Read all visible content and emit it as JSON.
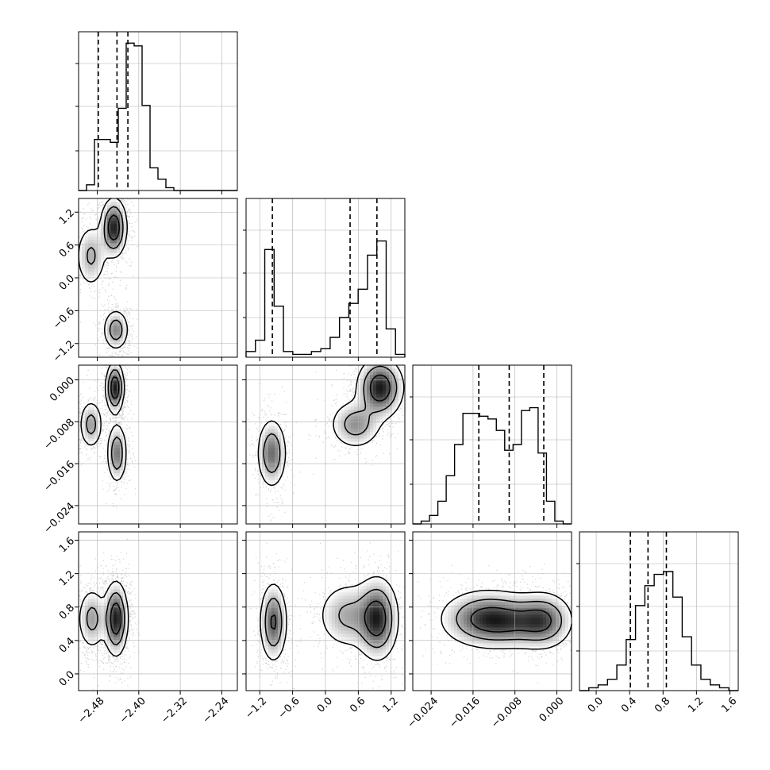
{
  "chart_data": {
    "type": "corner",
    "parameters": 4,
    "axes_ticks": [
      [
        "−2.48",
        "−2.40",
        "−2.32",
        "−2.24"
      ],
      [
        "−1.2",
        "−0.6",
        "0.0",
        "0.6",
        "1.2"
      ],
      [
        "−0.024",
        "−0.016",
        "−0.008",
        "0.000"
      ],
      [
        "0.0",
        "0.4",
        "0.8",
        "1.2",
        "1.6"
      ]
    ],
    "axes_tick_values": [
      [
        -2.48,
        -2.4,
        -2.32,
        -2.24
      ],
      [
        -1.2,
        -0.6,
        0.0,
        0.6,
        1.2
      ],
      [
        -0.024,
        -0.016,
        -0.008,
        0.0
      ],
      [
        0.0,
        0.4,
        0.8,
        1.2,
        1.6
      ]
    ],
    "ranges": [
      [
        -2.516,
        -2.21
      ],
      [
        -1.45,
        1.45
      ],
      [
        -0.0275,
        0.0028
      ],
      [
        -0.2,
        1.7
      ]
    ],
    "quantiles": [
      [
        -2.478,
        -2.442,
        -2.421
      ],
      [
        -0.97,
        0.45,
        0.94
      ],
      [
        -0.0149,
        -0.0091,
        -0.0025
      ],
      [
        0.41,
        0.62,
        0.84
      ]
    ],
    "histograms": [
      [
        0,
        2,
        18,
        18,
        17,
        29,
        52,
        51,
        30,
        8,
        4,
        1,
        0,
        0,
        0,
        0,
        0,
        0,
        0,
        0
      ],
      [
        2,
        6,
        38,
        18,
        2,
        1,
        1,
        2,
        3,
        7,
        14,
        19,
        24,
        36,
        41,
        10,
        1
      ],
      [
        0,
        1,
        3,
        8,
        17,
        28,
        39,
        39,
        38,
        37,
        33,
        26,
        28,
        40,
        41,
        25,
        8,
        1,
        0
      ],
      [
        0,
        1,
        2,
        4,
        9,
        18,
        30,
        37,
        41,
        42,
        33,
        19,
        9,
        4,
        2,
        1,
        0
      ]
    ],
    "hist_ylim": [
      0,
      56
    ],
    "modes": {
      "1_0": [
        {
          "cx": -2.448,
          "cy": 0.92,
          "sx": 0.013,
          "sy": 0.28,
          "w": 1.0
        },
        {
          "cx": -2.492,
          "cy": 0.4,
          "sx": 0.016,
          "sy": 0.32,
          "w": 0.45
        },
        {
          "cx": -2.444,
          "cy": -0.95,
          "sx": 0.013,
          "sy": 0.2,
          "w": 0.6
        }
      ],
      "2_0": [
        {
          "cx": -2.446,
          "cy": -0.0015,
          "sx": 0.009,
          "sy": 0.0025,
          "w": 1.0
        },
        {
          "cx": -2.492,
          "cy": -0.0085,
          "sx": 0.012,
          "sy": 0.0025,
          "w": 0.5
        },
        {
          "cx": -2.442,
          "cy": -0.014,
          "sx": 0.01,
          "sy": 0.003,
          "w": 0.65
        }
      ],
      "2_1": [
        {
          "cx": 1.0,
          "cy": -0.0015,
          "sx": 0.22,
          "sy": 0.003,
          "w": 1.0
        },
        {
          "cx": 0.55,
          "cy": -0.0085,
          "sx": 0.25,
          "sy": 0.0025,
          "w": 0.55
        },
        {
          "cx": -0.98,
          "cy": -0.014,
          "sx": 0.14,
          "sy": 0.0035,
          "w": 0.7
        }
      ],
      "3_0": [
        {
          "cx": -2.444,
          "cy": 0.66,
          "sx": 0.012,
          "sy": 0.23,
          "w": 1.0
        },
        {
          "cx": -2.49,
          "cy": 0.66,
          "sx": 0.015,
          "sy": 0.2,
          "w": 0.5
        }
      ],
      "3_1": [
        {
          "cx": -0.95,
          "cy": 0.62,
          "sx": 0.13,
          "sy": 0.25,
          "w": 0.85
        },
        {
          "cx": 0.95,
          "cy": 0.66,
          "sx": 0.2,
          "sy": 0.26,
          "w": 1.0
        },
        {
          "cx": 0.4,
          "cy": 0.7,
          "sx": 0.3,
          "sy": 0.22,
          "w": 0.5
        }
      ],
      "3_2": [
        {
          "cx": -0.0138,
          "cy": 0.66,
          "sx": 0.0045,
          "sy": 0.18,
          "w": 1.0
        },
        {
          "cx": -0.0025,
          "cy": 0.64,
          "sx": 0.003,
          "sy": 0.18,
          "w": 0.85
        },
        {
          "cx": -0.008,
          "cy": 0.62,
          "sx": 0.004,
          "sy": 0.17,
          "w": 0.55
        }
      ]
    },
    "contour_levels": [
      0.15,
      0.4,
      0.72
    ],
    "grid": true,
    "colors": {
      "line": "#000000",
      "grid": "#b0b0b0",
      "points": "#7f7f7f"
    }
  }
}
